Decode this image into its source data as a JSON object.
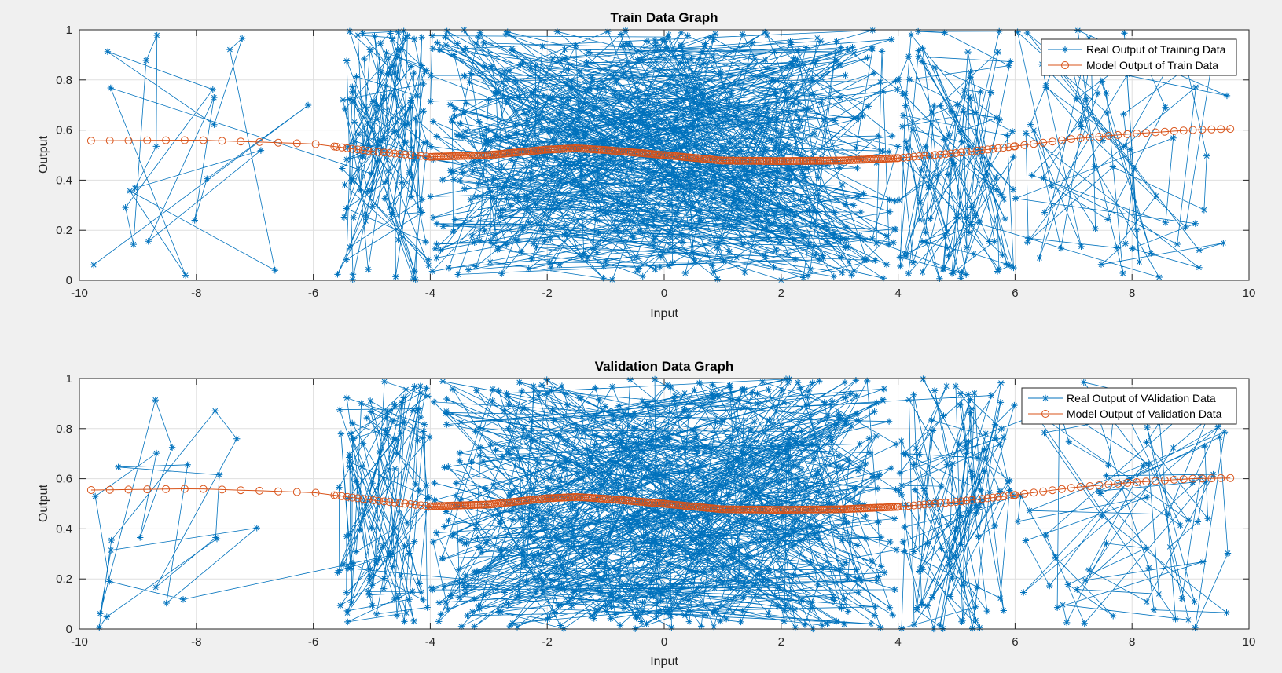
{
  "chart_data": [
    {
      "type": "line",
      "title": "Train Data Graph",
      "xlabel": "Input",
      "ylabel": "Output",
      "xlim": [
        -10,
        10
      ],
      "ylim": [
        0,
        1
      ],
      "xticks": [
        -10,
        -8,
        -6,
        -4,
        -2,
        0,
        2,
        4,
        6,
        8,
        10
      ],
      "yticks": [
        0,
        0.2,
        0.4,
        0.6,
        0.8,
        1
      ],
      "grid": true,
      "legend_position": "top-right",
      "series": [
        {
          "name": "Real Output of Training Data",
          "marker": "asterisk",
          "color": "#0072bd",
          "generated": {
            "x_clusters": [
              {
                "range": [
                  -9.8,
                  -6.0
                ],
                "count": 22
              },
              {
                "range": [
                  -5.6,
                  -4.0
                ],
                "count": 120
              },
              {
                "range": [
                  -4.0,
                  4.0
                ],
                "count": 640
              },
              {
                "range": [
                  4.0,
                  6.0
                ],
                "count": 110
              },
              {
                "range": [
                  6.0,
                  9.7
                ],
                "count": 70
              }
            ],
            "y_range": [
              0,
              1
            ],
            "seed": 7
          }
        },
        {
          "name": "Model Output of Train Data",
          "marker": "circle",
          "color": "#d95319",
          "curve": {
            "x": [
              -9.8,
              -8,
              -6,
              -5,
              -4,
              -3,
              -2,
              -1.5,
              -1,
              0,
              1,
              2,
              3,
              4,
              5,
              6,
              7,
              8,
              9,
              9.7
            ],
            "y": [
              0.557,
              0.56,
              0.545,
              0.515,
              0.493,
              0.5,
              0.522,
              0.527,
              0.52,
              0.5,
              0.478,
              0.476,
              0.478,
              0.488,
              0.508,
              0.535,
              0.565,
              0.585,
              0.6,
              0.605
            ]
          }
        }
      ]
    },
    {
      "type": "line",
      "title": "Validation Data Graph",
      "xlabel": "Input",
      "ylabel": "Output",
      "xlim": [
        -10,
        10
      ],
      "ylim": [
        0,
        1
      ],
      "xticks": [
        -10,
        -8,
        -6,
        -4,
        -2,
        0,
        2,
        4,
        6,
        8,
        10
      ],
      "yticks": [
        0,
        0.2,
        0.4,
        0.6,
        0.8,
        1
      ],
      "grid": true,
      "legend_position": "top-right",
      "series": [
        {
          "name": "Real Output of VAlidation Data",
          "marker": "asterisk",
          "color": "#0072bd",
          "generated": {
            "x_clusters": [
              {
                "range": [
                  -9.8,
                  -6.0
                ],
                "count": 22
              },
              {
                "range": [
                  -5.6,
                  -4.0
                ],
                "count": 110
              },
              {
                "range": [
                  -4.0,
                  4.0
                ],
                "count": 640
              },
              {
                "range": [
                  4.0,
                  6.0
                ],
                "count": 110
              },
              {
                "range": [
                  6.0,
                  9.7
                ],
                "count": 70
              }
            ],
            "y_range": [
              0,
              1
            ],
            "seed": 13
          }
        },
        {
          "name": "Model Output of Validation Data",
          "marker": "circle",
          "color": "#d95319",
          "curve": {
            "x": [
              -9.8,
              -8,
              -6,
              -5,
              -4,
              -3,
              -2,
              -1.5,
              -1,
              0,
              1,
              2,
              3,
              4,
              5,
              6,
              7,
              8,
              9,
              9.7
            ],
            "y": [
              0.555,
              0.56,
              0.545,
              0.515,
              0.49,
              0.497,
              0.522,
              0.527,
              0.52,
              0.5,
              0.478,
              0.476,
              0.478,
              0.488,
              0.508,
              0.535,
              0.565,
              0.585,
              0.6,
              0.603
            ]
          }
        }
      ]
    }
  ]
}
